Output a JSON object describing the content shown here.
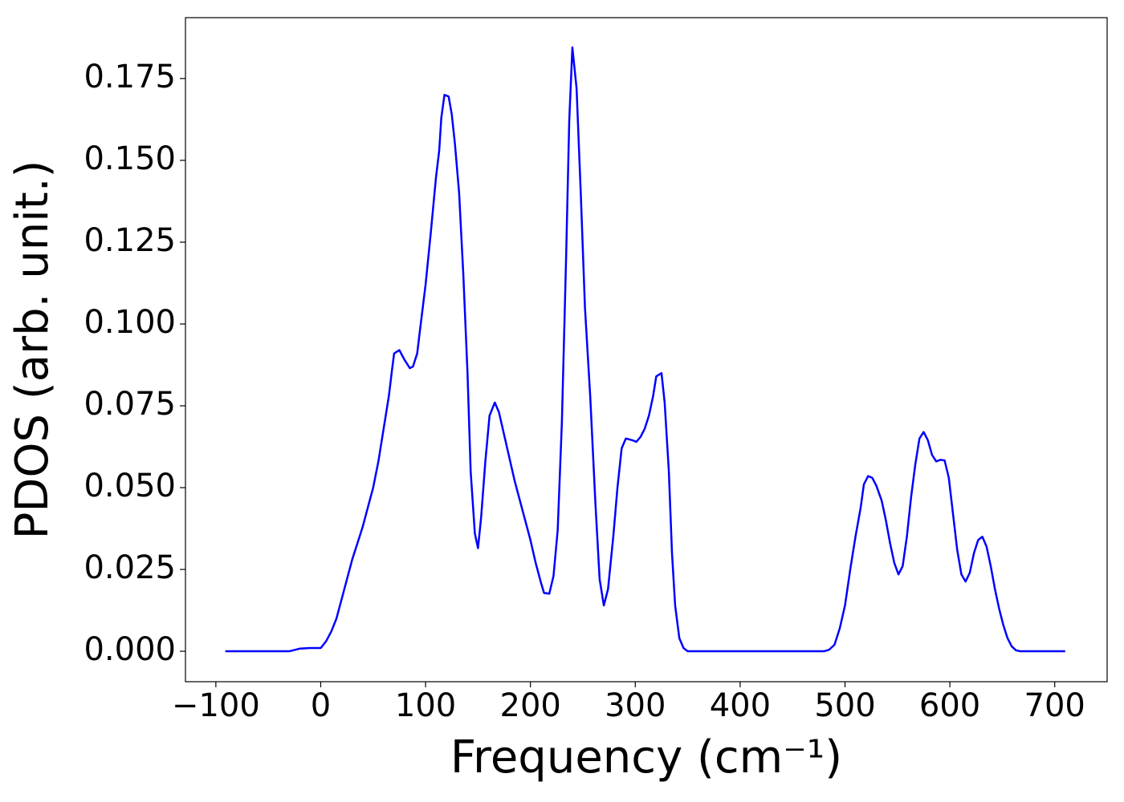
{
  "chart_data": {
    "type": "line",
    "xlabel": "Frequency (cm⁻¹)",
    "ylabel": "PDOS (arb. unit.)",
    "xlim": [
      -129,
      750
    ],
    "ylim": [
      -0.0093,
      0.1936
    ],
    "xticks": [
      {
        "value": -100,
        "label": "−100"
      },
      0,
      100,
      200,
      300,
      400,
      500,
      600,
      700
    ],
    "yticks": [
      {
        "value": 0,
        "label": "0.000"
      },
      {
        "value": 0.025,
        "label": "0.025"
      },
      {
        "value": 0.05,
        "label": "0.050"
      },
      {
        "value": 0.075,
        "label": "0.075"
      },
      {
        "value": 0.1,
        "label": "0.100"
      },
      {
        "value": 0.125,
        "label": "0.125"
      },
      {
        "value": 0.15,
        "label": "0.150"
      },
      {
        "value": 0.175,
        "label": "0.175"
      }
    ],
    "grid": false,
    "series": [
      {
        "color": "#0000ff",
        "x": [
          -91,
          -30,
          -20,
          -10,
          0,
          5,
          10,
          15,
          20,
          25,
          30,
          40,
          45,
          50,
          55,
          60,
          65,
          68,
          70,
          75,
          80,
          85,
          88,
          92,
          95,
          100,
          105,
          110,
          113,
          115,
          118,
          122,
          125,
          128,
          132,
          136,
          140,
          143,
          147,
          150,
          153,
          157,
          161,
          166,
          170,
          175,
          180,
          185,
          195,
          200,
          205,
          210,
          213,
          218,
          222,
          226,
          230,
          234,
          237,
          240,
          244,
          248,
          252,
          257,
          262,
          266,
          270,
          274,
          279,
          283,
          287,
          291,
          297,
          301,
          305,
          309,
          313,
          317,
          320,
          325,
          328,
          332,
          335,
          338,
          342,
          346,
          350,
          480,
          485,
          490,
          495,
          500,
          505,
          510,
          515,
          518,
          522,
          526,
          530,
          535,
          539,
          543,
          547,
          551,
          555,
          559,
          563,
          567,
          571,
          575,
          579,
          583,
          587,
          591,
          595,
          599,
          603,
          607,
          611,
          615,
          619,
          623,
          627,
          631,
          635,
          639,
          643,
          647,
          651,
          655,
          659,
          663,
          667,
          710
        ],
        "values": [
          0,
          0,
          0.0008,
          0.001,
          0.001,
          0.003,
          0.006,
          0.01,
          0.016,
          0.022,
          0.028,
          0.038,
          0.044,
          0.05,
          0.058,
          0.068,
          0.078,
          0.086,
          0.091,
          0.092,
          0.089,
          0.0865,
          0.087,
          0.091,
          0.099,
          0.112,
          0.128,
          0.145,
          0.153,
          0.163,
          0.17,
          0.1695,
          0.164,
          0.155,
          0.14,
          0.115,
          0.085,
          0.055,
          0.036,
          0.0315,
          0.041,
          0.058,
          0.072,
          0.076,
          0.073,
          0.066,
          0.059,
          0.052,
          0.04,
          0.034,
          0.027,
          0.021,
          0.0178,
          0.0176,
          0.023,
          0.037,
          0.07,
          0.12,
          0.162,
          0.1845,
          0.172,
          0.14,
          0.105,
          0.078,
          0.045,
          0.022,
          0.014,
          0.019,
          0.035,
          0.05,
          0.062,
          0.065,
          0.0645,
          0.064,
          0.0655,
          0.068,
          0.072,
          0.078,
          0.084,
          0.085,
          0.076,
          0.055,
          0.03,
          0.014,
          0.004,
          0.001,
          0,
          0,
          0.0005,
          0.002,
          0.007,
          0.014,
          0.025,
          0.035,
          0.044,
          0.051,
          0.0535,
          0.053,
          0.0505,
          0.046,
          0.04,
          0.033,
          0.027,
          0.0235,
          0.026,
          0.035,
          0.047,
          0.057,
          0.065,
          0.067,
          0.0645,
          0.06,
          0.058,
          0.0585,
          0.0583,
          0.053,
          0.042,
          0.031,
          0.0235,
          0.0213,
          0.024,
          0.03,
          0.034,
          0.035,
          0.032,
          0.026,
          0.019,
          0.013,
          0.008,
          0.004,
          0.0015,
          0.0003,
          0,
          0
        ]
      }
    ]
  }
}
